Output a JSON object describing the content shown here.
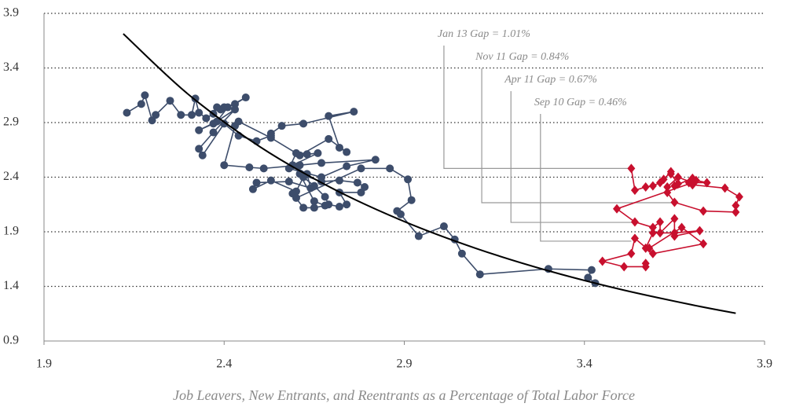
{
  "chart_data": {
    "type": "line",
    "x_label": "Job Leavers, New Entrants, and Reentrants as a Percentage of Total Labor Force",
    "xlim": [
      1.9,
      3.9
    ],
    "xticks": [
      1.9,
      2.4,
      2.9,
      3.4,
      3.9
    ],
    "ylim": [
      0.9,
      3.9
    ],
    "yticks": [
      0.9,
      1.4,
      1.9,
      2.4,
      2.9,
      3.4,
      3.9
    ],
    "grid": true,
    "series": [
      {
        "color": "#3d4d6b",
        "marker": "circle",
        "x": [
          2.13,
          2.17,
          2.18,
          2.2,
          2.21,
          2.25,
          2.28,
          2.31,
          2.32,
          2.33,
          2.35,
          2.37,
          2.38,
          2.39,
          2.4,
          2.43,
          2.46,
          2.41,
          2.38,
          2.33,
          2.37,
          2.43,
          2.37,
          2.33,
          2.34,
          2.4,
          2.44,
          2.49,
          2.53,
          2.53,
          2.56,
          2.62,
          2.76,
          2.69,
          2.72,
          2.74,
          2.69,
          2.61,
          2.53,
          2.44,
          2.43,
          2.4,
          2.47,
          2.51,
          2.61,
          2.67,
          2.82,
          2.74,
          2.67,
          2.58,
          2.6,
          2.63,
          2.66,
          2.59,
          2.63,
          2.64,
          2.58,
          2.49,
          2.48,
          2.53,
          2.6,
          2.62,
          2.65,
          2.68,
          2.69,
          2.72,
          2.74,
          2.72,
          2.78,
          2.79,
          2.77,
          2.72,
          2.67,
          2.61,
          2.65,
          2.68,
          2.65,
          2.62,
          2.59,
          2.6,
          2.78,
          2.86,
          2.91,
          2.92,
          2.88,
          2.89,
          2.94,
          3.01,
          3.04,
          3.06,
          3.11,
          3.3,
          3.42,
          3.41,
          3.43
        ],
        "values": [
          2.99,
          3.07,
          3.15,
          2.92,
          2.97,
          3.1,
          2.97,
          2.97,
          3.12,
          2.99,
          2.94,
          2.98,
          3.04,
          3.02,
          3.04,
          3.07,
          3.13,
          3.04,
          2.91,
          2.83,
          2.89,
          3.02,
          2.81,
          2.66,
          2.6,
          2.89,
          2.78,
          2.73,
          2.78,
          2.8,
          2.87,
          2.89,
          3.0,
          2.96,
          2.67,
          2.63,
          2.75,
          2.6,
          2.76,
          2.91,
          2.87,
          2.51,
          2.49,
          2.48,
          2.51,
          2.53,
          2.56,
          2.5,
          2.4,
          2.48,
          2.62,
          2.61,
          2.62,
          2.51,
          2.43,
          2.3,
          2.36,
          2.35,
          2.29,
          2.37,
          2.27,
          2.4,
          2.32,
          2.22,
          2.15,
          2.13,
          2.15,
          2.26,
          2.26,
          2.31,
          2.35,
          2.37,
          2.36,
          2.43,
          2.18,
          2.14,
          2.12,
          2.12,
          2.25,
          2.21,
          2.48,
          2.48,
          2.38,
          2.19,
          2.09,
          2.06,
          1.86,
          1.95,
          1.83,
          1.7,
          1.51,
          1.56,
          1.55,
          1.48,
          1.43
        ]
      },
      {
        "color": "#c8102e",
        "marker": "diamond",
        "x": [
          3.53,
          3.54,
          3.57,
          3.59,
          3.61,
          3.62,
          3.64,
          3.64,
          3.66,
          3.65,
          3.7,
          3.69,
          3.74,
          3.71,
          3.7,
          3.79,
          3.83,
          3.82,
          3.82,
          3.73,
          3.65,
          3.63,
          3.63,
          3.66,
          3.7,
          3.49,
          3.54,
          3.59,
          3.61,
          3.61,
          3.65,
          3.65,
          3.72,
          3.65,
          3.59,
          3.57,
          3.58,
          3.67,
          3.73,
          3.59,
          3.54,
          3.53,
          3.45,
          3.51,
          3.57,
          3.57
        ],
        "values": [
          2.48,
          2.28,
          2.31,
          2.32,
          2.35,
          2.38,
          2.45,
          2.43,
          2.34,
          2.32,
          2.39,
          2.35,
          2.35,
          2.37,
          2.33,
          2.3,
          2.22,
          2.14,
          2.08,
          2.09,
          2.17,
          2.26,
          2.31,
          2.4,
          2.35,
          2.11,
          1.99,
          1.94,
          1.99,
          1.89,
          2.02,
          1.86,
          1.91,
          1.89,
          1.89,
          1.75,
          1.75,
          1.94,
          1.79,
          1.7,
          1.84,
          1.7,
          1.63,
          1.58,
          1.58,
          1.61
        ]
      },
      {
        "color": "#000000",
        "marker": "none",
        "x": [
          2.12,
          2.3,
          2.5,
          2.7,
          2.9,
          3.1,
          3.3,
          3.5,
          3.7,
          3.82
        ],
        "values": [
          3.713,
          3.16,
          2.677,
          2.298,
          1.994,
          1.747,
          1.543,
          1.373,
          1.23,
          1.154
        ]
      }
    ],
    "annotations": [
      {
        "text": "Jan 13 Gap = 1.01%",
        "x": 3.01,
        "y": 2.48,
        "x_end": 3.53
      },
      {
        "text": "Nov 11 Gap = 0.84%",
        "x": 3.115,
        "y": 2.166,
        "x_end": 3.65
      },
      {
        "text": "Apr 11 Gap = 0.67%",
        "x": 3.196,
        "y": 1.986,
        "x_end": 3.54
      },
      {
        "text": "Sep 10 Gap = 0.46%",
        "x": 3.278,
        "y": 1.814,
        "x_end": 3.53
      }
    ]
  }
}
